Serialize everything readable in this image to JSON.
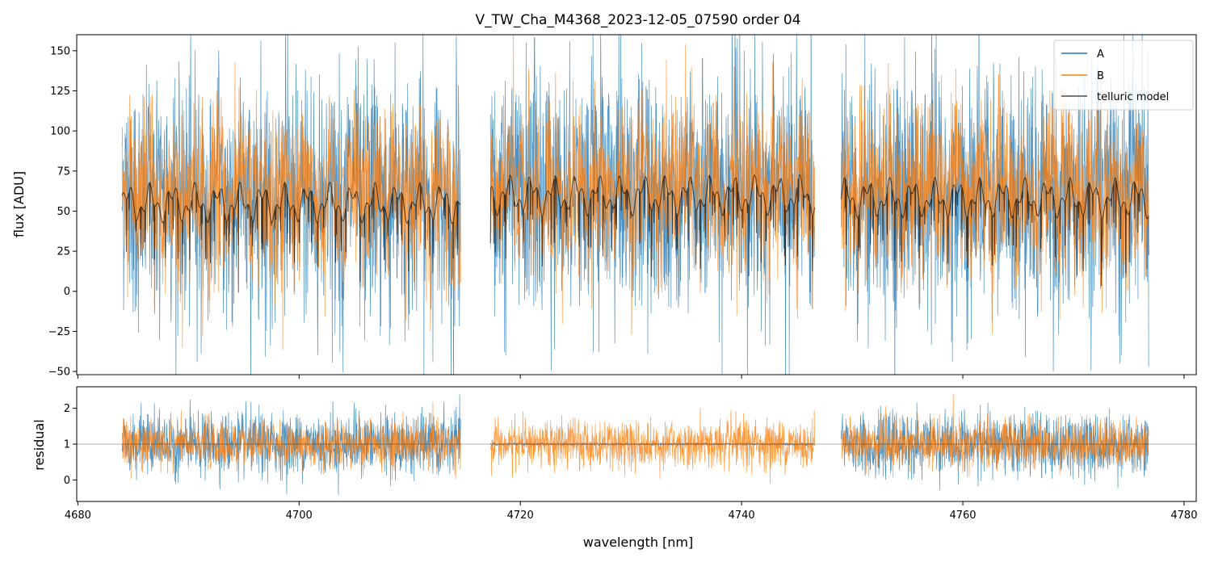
{
  "colors": {
    "A": "#1f77b4",
    "B": "#ff7f0e",
    "telluric": "#000000",
    "axis": "#000000",
    "background": "#ffffff"
  },
  "chart_data": [
    {
      "panel": "flux",
      "type": "line",
      "title": "V_TW_Cha_M4368_2023-12-05_07590  order 04",
      "xlabel": "",
      "ylabel": "flux [ADU]",
      "xlim": [
        4679.9,
        4781.1
      ],
      "ylim": [
        -52,
        160
      ],
      "xticks": [
        4680,
        4700,
        4720,
        4740,
        4760,
        4780
      ],
      "yticks": [
        -50,
        -25,
        0,
        25,
        50,
        75,
        100,
        125,
        150
      ],
      "ytick_labels": [
        "−50",
        "−25",
        "0",
        "25",
        "50",
        "75",
        "100",
        "125",
        "150"
      ],
      "grid": false,
      "legend": {
        "position": "top-right",
        "entries": [
          "A",
          "B",
          "telluric model"
        ]
      },
      "segments": [
        {
          "x_range": [
            4684.0,
            4714.6
          ],
          "level_B": 65,
          "level_model": 55
        },
        {
          "x_range": [
            4717.3,
            4746.6
          ],
          "level_B": 62,
          "level_model": 60
        },
        {
          "x_range": [
            4749.0,
            4776.8
          ],
          "level_B": 68,
          "level_model": 58
        }
      ],
      "series": [
        {
          "name": "A",
          "description": "noisy flux, roughly -50 to 160 ADU, mean about 60"
        },
        {
          "name": "B",
          "description": "noisy flux, roughly -50 to 160 ADU, mean about 60"
        },
        {
          "name": "telluric model",
          "description": "smooth model between about 0 and 88 ADU with absorption dips"
        }
      ]
    },
    {
      "panel": "residual",
      "type": "line",
      "xlabel": "wavelength [nm]",
      "ylabel": "residual",
      "xlim": [
        4679.9,
        4781.1
      ],
      "ylim": [
        -0.6,
        2.6
      ],
      "xticks": [
        4680,
        4700,
        4720,
        4740,
        4760,
        4780
      ],
      "yticks": [
        0,
        1,
        2
      ],
      "reference_line": 1,
      "grid": false,
      "series": [
        {
          "name": "A",
          "description": "residual noise centered at 1, spread about ±0.8"
        },
        {
          "name": "B",
          "description": "residual noise centered at 1, spread about ±0.6"
        }
      ]
    }
  ]
}
